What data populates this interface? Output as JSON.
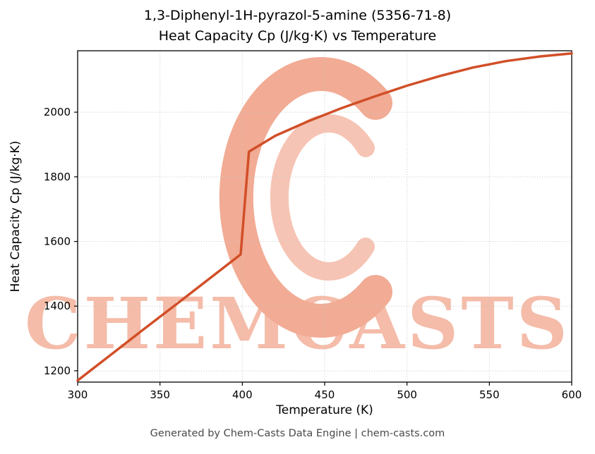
{
  "page": {
    "title_line1": "1,3-Diphenyl-1H-pyrazol-5-amine (5356-71-8)",
    "title_line2": "Heat Capacity Cp (J/kg·K) vs Temperature",
    "watermark": "CHEMCASTS",
    "footer": "Generated by Chem-Casts Data Engine | chem-casts.com"
  },
  "chart_data": {
    "type": "line",
    "title": "1,3-Diphenyl-1H-pyrazol-5-amine (5356-71-8) — Heat Capacity Cp (J/kg·K) vs Temperature",
    "xlabel": "Temperature (K)",
    "ylabel": "Heat Capacity Cp (J/kg·K)",
    "xlim": [
      300,
      600
    ],
    "ylim": [
      1165,
      2190
    ],
    "x_ticks": [
      300,
      350,
      400,
      450,
      500,
      550,
      600
    ],
    "y_ticks": [
      1200,
      1400,
      1600,
      1800,
      2000
    ],
    "grid": true,
    "series_name": "Heat Capacity Cp",
    "x": [
      300,
      320,
      340,
      360,
      380,
      397,
      399,
      404,
      420,
      440,
      460,
      480,
      500,
      520,
      540,
      560,
      580,
      600
    ],
    "y": [
      1170,
      1249,
      1328,
      1406,
      1485,
      1552,
      1560,
      1878,
      1927,
      1972,
      2012,
      2048,
      2082,
      2112,
      2138,
      2158,
      2172,
      2182
    ],
    "line_color": "#d14f28",
    "grid_color": "#c6c6c6",
    "axis_color": "#000000",
    "watermark_text_color": "#f4bca9",
    "watermark_logo_color": "#f2ab94"
  }
}
